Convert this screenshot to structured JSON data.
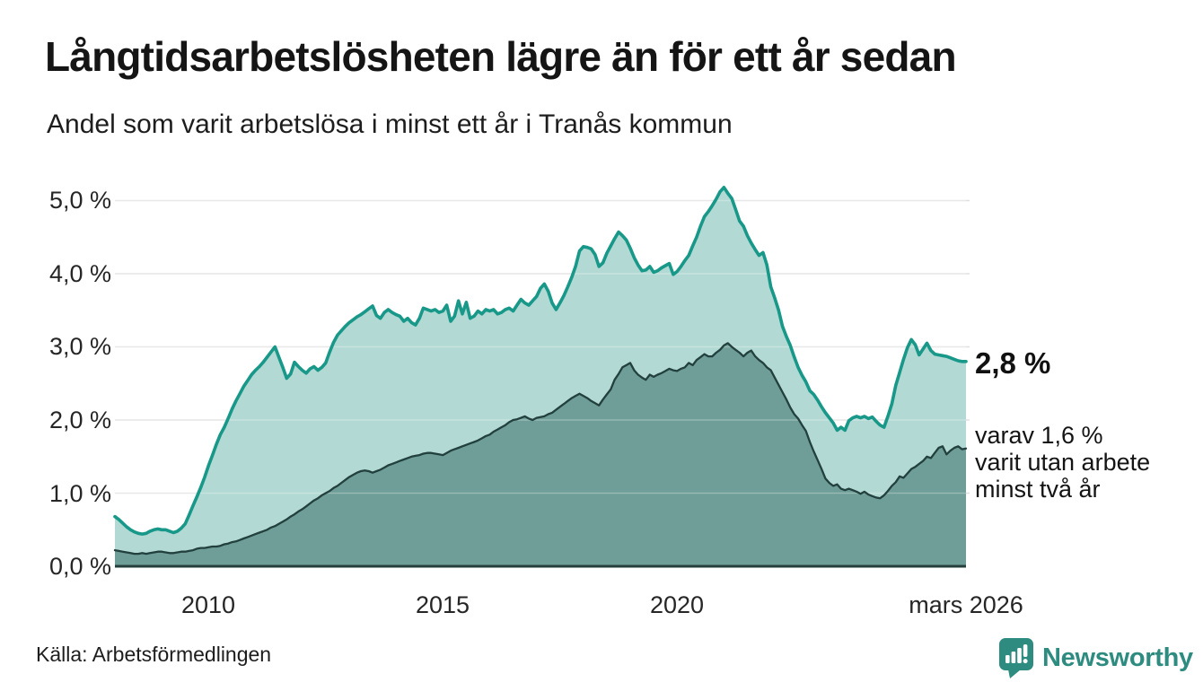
{
  "header": {
    "title": "Långtidsarbetslösheten lägre än för ett år sedan",
    "subtitle": "Andel som varit arbetslösa i minst ett år i Tranås kommun"
  },
  "annotations": {
    "latest_total": "2,8 %",
    "latest_breakdown_lines": [
      "varav 1,6 %",
      "varit utan arbete",
      "minst två år"
    ]
  },
  "source": "Källa: Arbetsförmedlingen",
  "branding": {
    "name": "Newsworthy",
    "icon": "bar-chart-badge-icon",
    "color": "#2e8b80"
  },
  "colors": {
    "series1_line": "#189889",
    "series1_fill": "#b2d9d3",
    "series2_line": "#22403d",
    "series2_fill": "#6f9e98",
    "gridline": "#e0e0e0",
    "axis": "#25403c",
    "text": "#1d1d1d"
  },
  "chart_data": {
    "type": "area",
    "title": "Långtidsarbetslösheten lägre än för ett år sedan",
    "subtitle": "Andel som varit arbetslösa i minst ett år i Tranås kommun",
    "x_unit": "decimal_year_monthly",
    "x_range": [
      2008.0,
      2026.1667
    ],
    "ylim": [
      0,
      5.5
    ],
    "grid": true,
    "legend": "none",
    "y_ticks": [
      {
        "value": 5,
        "label": "5,0 %"
      },
      {
        "value": 4,
        "label": "4,0 %"
      },
      {
        "value": 3,
        "label": "3,0 %"
      },
      {
        "value": 2,
        "label": "2,0 %"
      },
      {
        "value": 1,
        "label": "1,0 %"
      },
      {
        "value": 0,
        "label": "0,0 %"
      }
    ],
    "x_ticks": [
      {
        "value": 2010,
        "label": "2010"
      },
      {
        "value": 2015,
        "label": "2015"
      },
      {
        "value": 2020,
        "label": "2020"
      },
      {
        "value": 2026.1667,
        "label": "mars 2026"
      }
    ],
    "series": [
      {
        "name": "arbetslösa minst ett år",
        "color": "#189889",
        "fill": "#b2d9d3",
        "start_year": 2008.0,
        "interval_months": 1,
        "latest_value_label": "2,8 %",
        "values": [
          0.68,
          0.64,
          0.59,
          0.54,
          0.5,
          0.47,
          0.45,
          0.44,
          0.45,
          0.48,
          0.5,
          0.51,
          0.5,
          0.5,
          0.48,
          0.46,
          0.48,
          0.52,
          0.58,
          0.7,
          0.83,
          0.95,
          1.08,
          1.22,
          1.38,
          1.52,
          1.67,
          1.8,
          1.9,
          2.02,
          2.15,
          2.26,
          2.36,
          2.46,
          2.54,
          2.62,
          2.68,
          2.73,
          2.79,
          2.86,
          2.93,
          3.0,
          2.86,
          2.72,
          2.57,
          2.63,
          2.79,
          2.73,
          2.68,
          2.64,
          2.7,
          2.73,
          2.68,
          2.72,
          2.78,
          2.93,
          3.06,
          3.16,
          3.22,
          3.28,
          3.33,
          3.37,
          3.41,
          3.44,
          3.48,
          3.52,
          3.56,
          3.43,
          3.39,
          3.47,
          3.51,
          3.47,
          3.44,
          3.42,
          3.35,
          3.39,
          3.33,
          3.3,
          3.39,
          3.53,
          3.51,
          3.49,
          3.51,
          3.47,
          3.49,
          3.57,
          3.35,
          3.42,
          3.63,
          3.45,
          3.61,
          3.39,
          3.42,
          3.49,
          3.45,
          3.51,
          3.49,
          3.51,
          3.45,
          3.47,
          3.51,
          3.53,
          3.49,
          3.57,
          3.65,
          3.6,
          3.57,
          3.63,
          3.69,
          3.8,
          3.86,
          3.76,
          3.6,
          3.51,
          3.6,
          3.7,
          3.82,
          3.95,
          4.1,
          4.31,
          4.37,
          4.36,
          4.34,
          4.26,
          4.1,
          4.15,
          4.28,
          4.38,
          4.48,
          4.57,
          4.52,
          4.46,
          4.35,
          4.22,
          4.12,
          4.04,
          4.05,
          4.1,
          4.02,
          4.04,
          4.08,
          4.11,
          4.14,
          3.99,
          4.03,
          4.1,
          4.18,
          4.25,
          4.38,
          4.5,
          4.65,
          4.78,
          4.85,
          4.93,
          5.02,
          5.12,
          5.18,
          5.1,
          5.03,
          4.88,
          4.72,
          4.65,
          4.52,
          4.42,
          4.33,
          4.25,
          4.29,
          4.12,
          3.82,
          3.67,
          3.5,
          3.28,
          3.14,
          3.02,
          2.86,
          2.72,
          2.61,
          2.52,
          2.4,
          2.35,
          2.27,
          2.18,
          2.1,
          2.03,
          1.96,
          1.86,
          1.9,
          1.86,
          1.99,
          2.03,
          2.05,
          2.03,
          2.05,
          2.02,
          2.04,
          1.98,
          1.93,
          1.9,
          2.05,
          2.22,
          2.47,
          2.65,
          2.83,
          2.99,
          3.1,
          3.03,
          2.89,
          2.97,
          3.05,
          2.95,
          2.9,
          2.89,
          2.88,
          2.87,
          2.85,
          2.83,
          2.81,
          2.8,
          2.8
        ]
      },
      {
        "name": "arbetslösa minst två år",
        "color": "#22403d",
        "fill": "#6f9e98",
        "start_year": 2008.0,
        "interval_months": 1,
        "latest_value_label": "1,6 %",
        "values": [
          0.22,
          0.21,
          0.2,
          0.19,
          0.18,
          0.17,
          0.17,
          0.18,
          0.17,
          0.18,
          0.19,
          0.2,
          0.2,
          0.19,
          0.18,
          0.18,
          0.19,
          0.2,
          0.2,
          0.21,
          0.22,
          0.24,
          0.25,
          0.25,
          0.26,
          0.27,
          0.27,
          0.28,
          0.3,
          0.31,
          0.33,
          0.34,
          0.36,
          0.38,
          0.4,
          0.42,
          0.44,
          0.46,
          0.48,
          0.5,
          0.53,
          0.55,
          0.58,
          0.61,
          0.64,
          0.68,
          0.71,
          0.75,
          0.78,
          0.82,
          0.86,
          0.9,
          0.93,
          0.97,
          1.0,
          1.03,
          1.07,
          1.1,
          1.14,
          1.18,
          1.22,
          1.25,
          1.28,
          1.3,
          1.31,
          1.3,
          1.28,
          1.3,
          1.32,
          1.35,
          1.38,
          1.4,
          1.42,
          1.44,
          1.46,
          1.48,
          1.5,
          1.51,
          1.52,
          1.54,
          1.55,
          1.55,
          1.54,
          1.53,
          1.52,
          1.55,
          1.58,
          1.6,
          1.62,
          1.64,
          1.66,
          1.68,
          1.7,
          1.72,
          1.75,
          1.78,
          1.8,
          1.84,
          1.87,
          1.9,
          1.93,
          1.97,
          2.0,
          2.01,
          2.03,
          2.05,
          2.02,
          2.0,
          2.03,
          2.04,
          2.05,
          2.08,
          2.1,
          2.14,
          2.18,
          2.22,
          2.26,
          2.3,
          2.33,
          2.36,
          2.33,
          2.3,
          2.26,
          2.23,
          2.2,
          2.28,
          2.35,
          2.42,
          2.55,
          2.63,
          2.72,
          2.75,
          2.78,
          2.68,
          2.62,
          2.58,
          2.55,
          2.62,
          2.59,
          2.62,
          2.64,
          2.67,
          2.7,
          2.68,
          2.67,
          2.7,
          2.72,
          2.78,
          2.75,
          2.82,
          2.86,
          2.9,
          2.87,
          2.87,
          2.92,
          2.96,
          3.02,
          3.05,
          3.0,
          2.96,
          2.92,
          2.87,
          2.92,
          2.95,
          2.87,
          2.82,
          2.78,
          2.72,
          2.68,
          2.58,
          2.48,
          2.38,
          2.28,
          2.17,
          2.08,
          2.02,
          1.93,
          1.85,
          1.7,
          1.57,
          1.45,
          1.33,
          1.2,
          1.14,
          1.1,
          1.12,
          1.06,
          1.04,
          1.06,
          1.04,
          1.02,
          0.99,
          1.02,
          0.98,
          0.96,
          0.94,
          0.93,
          0.97,
          1.03,
          1.1,
          1.15,
          1.23,
          1.21,
          1.27,
          1.33,
          1.36,
          1.4,
          1.44,
          1.5,
          1.48,
          1.55,
          1.62,
          1.64,
          1.53,
          1.58,
          1.62,
          1.64,
          1.6,
          1.61
        ]
      }
    ]
  }
}
